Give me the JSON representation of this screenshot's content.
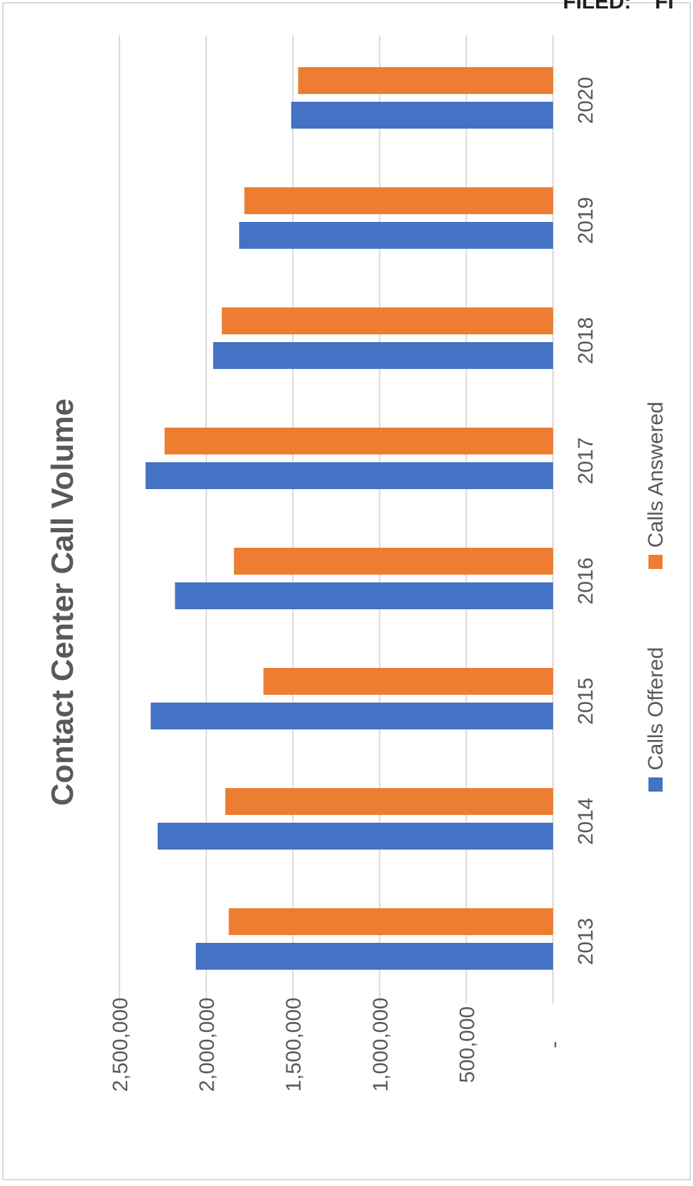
{
  "corner_text": "FILED:    FI",
  "chart_data": {
    "type": "bar",
    "orientation": "rotated-90",
    "title": "Contact Center Call Volume",
    "xlabel": "",
    "ylabel": "",
    "categories": [
      "2013",
      "2014",
      "2015",
      "2016",
      "2017",
      "2018",
      "2019",
      "2020"
    ],
    "series": [
      {
        "name": "Calls Offered",
        "color": "#4472C4",
        "values": [
          2060000,
          2280000,
          2320000,
          2180000,
          2350000,
          1960000,
          1810000,
          1510000
        ]
      },
      {
        "name": "Calls Answered",
        "color": "#ED7D31",
        "values": [
          1870000,
          1890000,
          1670000,
          1840000,
          2240000,
          1910000,
          1780000,
          1470000
        ]
      }
    ],
    "ylim": [
      0,
      2500000
    ],
    "yticks": [
      {
        "value": 0,
        "label": "-"
      },
      {
        "value": 500000,
        "label": "500,000"
      },
      {
        "value": 1000000,
        "label": "1,000,000"
      },
      {
        "value": 1500000,
        "label": "1,500,000"
      },
      {
        "value": 2000000,
        "label": "2,000,000"
      },
      {
        "value": 2500000,
        "label": "2,500,000"
      }
    ],
    "grid": true,
    "legend": "bottom",
    "colors": {
      "gridline": "#D9D9D9",
      "frame": "#D9D9D9",
      "text": "#595959"
    }
  }
}
